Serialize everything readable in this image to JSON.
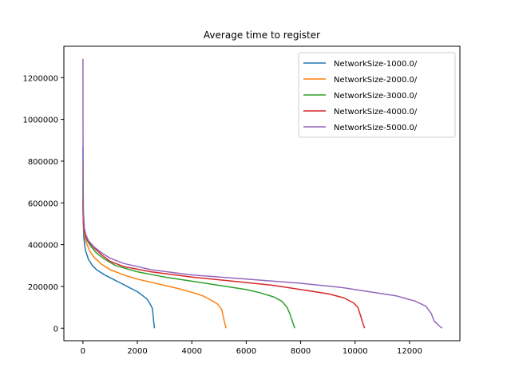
{
  "chart_data": {
    "type": "line",
    "title": "Average time to register",
    "xlabel": "",
    "ylabel": "",
    "xlim": [
      -700,
      13850
    ],
    "ylim": [
      -60000,
      1350000
    ],
    "xticks": [
      0,
      2000,
      4000,
      6000,
      8000,
      10000,
      12000
    ],
    "yticks": [
      0,
      200000,
      400000,
      600000,
      800000,
      1000000,
      1200000
    ],
    "grid": false,
    "legend_position": "upper right",
    "series": [
      {
        "name": "NetworkSize-1000.0/",
        "color": "#1f77b4",
        "points": [
          [
            0,
            870000
          ],
          [
            3,
            650000
          ],
          [
            8,
            560000
          ],
          [
            15,
            500000
          ],
          [
            30,
            440000
          ],
          [
            60,
            400000
          ],
          [
            100,
            370000
          ],
          [
            200,
            330000
          ],
          [
            350,
            300000
          ],
          [
            500,
            280000
          ],
          [
            800,
            255000
          ],
          [
            1100,
            235000
          ],
          [
            1400,
            215000
          ],
          [
            1700,
            195000
          ],
          [
            2000,
            175000
          ],
          [
            2200,
            155000
          ],
          [
            2350,
            140000
          ],
          [
            2450,
            120000
          ],
          [
            2550,
            95000
          ],
          [
            2580,
            60000
          ],
          [
            2600,
            30000
          ],
          [
            2630,
            0
          ]
        ]
      },
      {
        "name": "NetworkSize-2000.0/",
        "color": "#ff7f0e",
        "points": [
          [
            0,
            780000
          ],
          [
            5,
            600000
          ],
          [
            15,
            520000
          ],
          [
            30,
            470000
          ],
          [
            60,
            440000
          ],
          [
            120,
            410000
          ],
          [
            250,
            370000
          ],
          [
            400,
            340000
          ],
          [
            700,
            305000
          ],
          [
            1000,
            280000
          ],
          [
            1500,
            255000
          ],
          [
            2000,
            235000
          ],
          [
            2500,
            220000
          ],
          [
            3000,
            205000
          ],
          [
            3500,
            190000
          ],
          [
            4000,
            172000
          ],
          [
            4400,
            155000
          ],
          [
            4700,
            135000
          ],
          [
            4950,
            115000
          ],
          [
            5100,
            90000
          ],
          [
            5150,
            60000
          ],
          [
            5200,
            30000
          ],
          [
            5260,
            0
          ]
        ]
      },
      {
        "name": "NetworkSize-3000.0/",
        "color": "#2ca02c",
        "points": [
          [
            0,
            700000
          ],
          [
            5,
            580000
          ],
          [
            15,
            520000
          ],
          [
            40,
            470000
          ],
          [
            80,
            445000
          ],
          [
            150,
            420000
          ],
          [
            300,
            390000
          ],
          [
            500,
            360000
          ],
          [
            800,
            330000
          ],
          [
            1200,
            300000
          ],
          [
            2000,
            270000
          ],
          [
            3000,
            245000
          ],
          [
            4000,
            225000
          ],
          [
            5000,
            205000
          ],
          [
            6000,
            185000
          ],
          [
            6500,
            170000
          ],
          [
            7000,
            150000
          ],
          [
            7300,
            130000
          ],
          [
            7500,
            100000
          ],
          [
            7600,
            70000
          ],
          [
            7700,
            30000
          ],
          [
            7780,
            0
          ]
        ]
      },
      {
        "name": "NetworkSize-4000.0/",
        "color": "#d62728",
        "points": [
          [
            0,
            620000
          ],
          [
            5,
            560000
          ],
          [
            20,
            500000
          ],
          [
            50,
            460000
          ],
          [
            100,
            440000
          ],
          [
            200,
            415000
          ],
          [
            400,
            385000
          ],
          [
            700,
            350000
          ],
          [
            1000,
            320000
          ],
          [
            1500,
            295000
          ],
          [
            2500,
            270000
          ],
          [
            4000,
            245000
          ],
          [
            5500,
            225000
          ],
          [
            7000,
            205000
          ],
          [
            8000,
            185000
          ],
          [
            9000,
            165000
          ],
          [
            9600,
            145000
          ],
          [
            9950,
            120000
          ],
          [
            10100,
            100000
          ],
          [
            10200,
            60000
          ],
          [
            10280,
            25000
          ],
          [
            10350,
            0
          ]
        ]
      },
      {
        "name": "NetworkSize-5000.0/",
        "color": "#9467bd",
        "points": [
          [
            0,
            1290000
          ],
          [
            5,
            900000
          ],
          [
            10,
            700000
          ],
          [
            20,
            560000
          ],
          [
            50,
            480000
          ],
          [
            100,
            450000
          ],
          [
            200,
            420000
          ],
          [
            400,
            390000
          ],
          [
            700,
            360000
          ],
          [
            1000,
            335000
          ],
          [
            1500,
            310000
          ],
          [
            2500,
            280000
          ],
          [
            4000,
            255000
          ],
          [
            6000,
            235000
          ],
          [
            8000,
            215000
          ],
          [
            9500,
            195000
          ],
          [
            10500,
            175000
          ],
          [
            11500,
            155000
          ],
          [
            12200,
            130000
          ],
          [
            12600,
            105000
          ],
          [
            12800,
            70000
          ],
          [
            12900,
            35000
          ],
          [
            13100,
            10000
          ],
          [
            13200,
            0
          ]
        ]
      }
    ]
  }
}
